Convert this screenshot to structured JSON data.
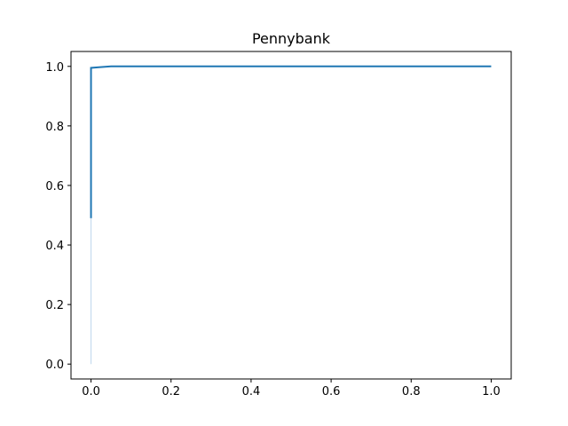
{
  "chart_data": {
    "type": "line",
    "title": "Pennybank",
    "xlabel": "",
    "ylabel": "",
    "xlim": [
      -0.05,
      1.05
    ],
    "ylim": [
      -0.05,
      1.05
    ],
    "x_ticks": [
      "0.0",
      "0.2",
      "0.4",
      "0.6",
      "0.8",
      "1.0"
    ],
    "y_ticks": [
      "0.0",
      "0.2",
      "0.4",
      "0.6",
      "0.8",
      "1.0"
    ],
    "grid": false,
    "legend": "none",
    "series": [
      {
        "color": "#1f77b4",
        "x": [
          0.0,
          0.0,
          0.0,
          0.02,
          0.05,
          1.0
        ],
        "y": [
          0.49,
          0.7,
          0.995,
          0.997,
          1.0,
          1.0
        ]
      },
      {
        "color": "#c6dbef",
        "x": [
          0.0,
          0.0
        ],
        "y": [
          0.0,
          0.49
        ]
      }
    ]
  }
}
